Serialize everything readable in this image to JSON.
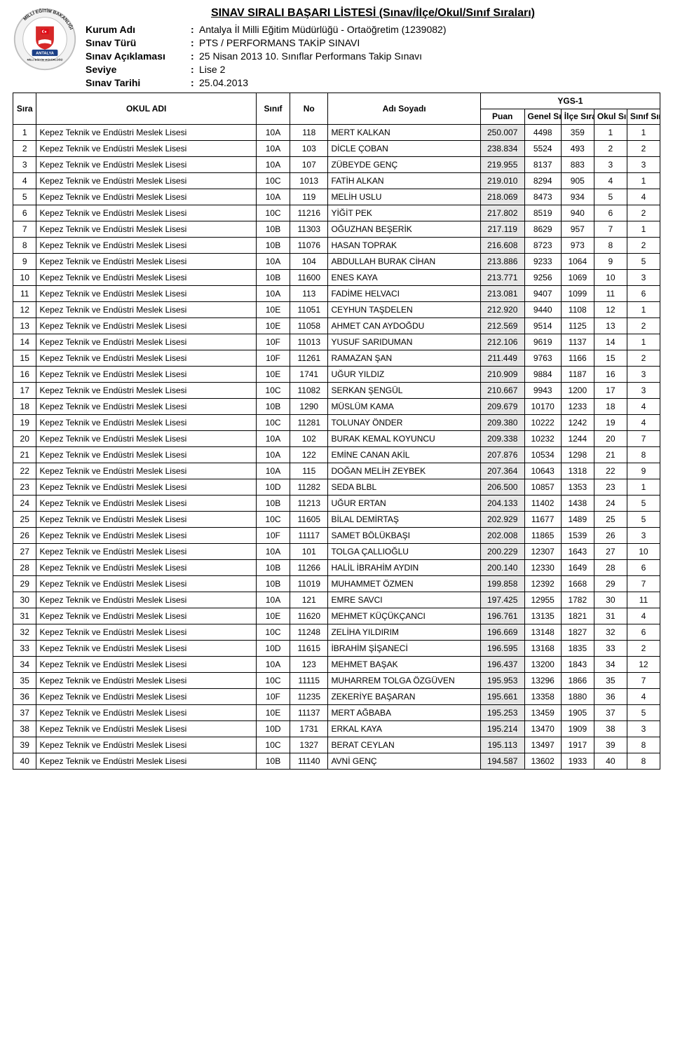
{
  "header": {
    "title": "SINAV SIRALI BAŞARI LİSTESİ (Sınav/İlçe/Okul/Sınıf Sıraları)",
    "labels": {
      "kurum": "Kurum Adı",
      "sinavTuru": "Sınav Türü",
      "aciklama": "Sınav Açıklaması",
      "seviye": "Seviye",
      "tarih": "Sınav Tarihi"
    },
    "values": {
      "kurum": "Antalya İl Milli Eğitim Müdürlüğü - Ortaöğretim (1239082)",
      "sinavTuru": "PTS / PERFORMANS TAKİP SINAVI",
      "aciklama": "25 Nisan 2013 10. Sınıflar Performans Takip Sınavı",
      "seviye": "Lise 2",
      "tarih": "25.04.2013"
    },
    "logo": {
      "outerText": "MİLLİ EĞİTİM BAKANLIĞI",
      "band": "ANTALYA",
      "sub": "MİLLİ EĞİTİM MÜDÜRLÜĞÜ",
      "ring_color": "#f2f2f2",
      "ring_stroke": "#bdbdbd",
      "center_red": "#d62828",
      "band_blue": "#1b3f86",
      "flag_red": "#e30a17",
      "border_color": "#777777",
      "text_color": "#1b1b1b"
    }
  },
  "table": {
    "group_title": "YGS-1",
    "columns": {
      "sira": "Sıra",
      "okul": "OKUL ADI",
      "sinif": "Sınıf",
      "no": "No",
      "ad": "Adı Soyadı",
      "puan": "Puan",
      "genel": "Genel Sıra",
      "ilce": "İlçe Sıra",
      "okuls": "Okul Sıra",
      "sinifs": "Sınıf Sıra"
    },
    "school_name": "Kepez Teknik ve Endüstri Meslek Lisesi",
    "puan_bg": "#e6e6e6",
    "rows": [
      {
        "sira": 1,
        "sinif": "10A",
        "no": "118",
        "ad": "MERT KALKAN",
        "puan": "250.007",
        "genel": 4498,
        "ilce": 359,
        "okuls": 1,
        "sinifs": 1
      },
      {
        "sira": 2,
        "sinif": "10A",
        "no": "103",
        "ad": "DİCLE ÇOBAN",
        "puan": "238.834",
        "genel": 5524,
        "ilce": 493,
        "okuls": 2,
        "sinifs": 2
      },
      {
        "sira": 3,
        "sinif": "10A",
        "no": "107",
        "ad": "ZÜBEYDE GENÇ",
        "puan": "219.955",
        "genel": 8137,
        "ilce": 883,
        "okuls": 3,
        "sinifs": 3
      },
      {
        "sira": 4,
        "sinif": "10C",
        "no": "1013",
        "ad": "FATİH ALKAN",
        "puan": "219.010",
        "genel": 8294,
        "ilce": 905,
        "okuls": 4,
        "sinifs": 1
      },
      {
        "sira": 5,
        "sinif": "10A",
        "no": "119",
        "ad": "MELİH USLU",
        "puan": "218.069",
        "genel": 8473,
        "ilce": 934,
        "okuls": 5,
        "sinifs": 4
      },
      {
        "sira": 6,
        "sinif": "10C",
        "no": "11216",
        "ad": "YİĞİT PEK",
        "puan": "217.802",
        "genel": 8519,
        "ilce": 940,
        "okuls": 6,
        "sinifs": 2
      },
      {
        "sira": 7,
        "sinif": "10B",
        "no": "11303",
        "ad": "OĞUZHAN BEŞERİK",
        "puan": "217.119",
        "genel": 8629,
        "ilce": 957,
        "okuls": 7,
        "sinifs": 1
      },
      {
        "sira": 8,
        "sinif": "10B",
        "no": "11076",
        "ad": "HASAN TOPRAK",
        "puan": "216.608",
        "genel": 8723,
        "ilce": 973,
        "okuls": 8,
        "sinifs": 2
      },
      {
        "sira": 9,
        "sinif": "10A",
        "no": "104",
        "ad": "ABDULLAH BURAK CİHAN",
        "puan": "213.886",
        "genel": 9233,
        "ilce": 1064,
        "okuls": 9,
        "sinifs": 5
      },
      {
        "sira": 10,
        "sinif": "10B",
        "no": "11600",
        "ad": "ENES KAYA",
        "puan": "213.771",
        "genel": 9256,
        "ilce": 1069,
        "okuls": 10,
        "sinifs": 3
      },
      {
        "sira": 11,
        "sinif": "10A",
        "no": "113",
        "ad": "FADİME HELVACI",
        "puan": "213.081",
        "genel": 9407,
        "ilce": 1099,
        "okuls": 11,
        "sinifs": 6
      },
      {
        "sira": 12,
        "sinif": "10E",
        "no": "11051",
        "ad": "CEYHUN TAŞDELEN",
        "puan": "212.920",
        "genel": 9440,
        "ilce": 1108,
        "okuls": 12,
        "sinifs": 1
      },
      {
        "sira": 13,
        "sinif": "10E",
        "no": "11058",
        "ad": "AHMET CAN AYDOĞDU",
        "puan": "212.569",
        "genel": 9514,
        "ilce": 1125,
        "okuls": 13,
        "sinifs": 2
      },
      {
        "sira": 14,
        "sinif": "10F",
        "no": "11013",
        "ad": "YUSUF SARIDUMAN",
        "puan": "212.106",
        "genel": 9619,
        "ilce": 1137,
        "okuls": 14,
        "sinifs": 1
      },
      {
        "sira": 15,
        "sinif": "10F",
        "no": "11261",
        "ad": "RAMAZAN ŞAN",
        "puan": "211.449",
        "genel": 9763,
        "ilce": 1166,
        "okuls": 15,
        "sinifs": 2
      },
      {
        "sira": 16,
        "sinif": "10E",
        "no": "1741",
        "ad": "UĞUR YILDIZ",
        "puan": "210.909",
        "genel": 9884,
        "ilce": 1187,
        "okuls": 16,
        "sinifs": 3
      },
      {
        "sira": 17,
        "sinif": "10C",
        "no": "11082",
        "ad": "SERKAN ŞENGÜL",
        "puan": "210.667",
        "genel": 9943,
        "ilce": 1200,
        "okuls": 17,
        "sinifs": 3
      },
      {
        "sira": 18,
        "sinif": "10B",
        "no": "1290",
        "ad": "MÜSLÜM KAMA",
        "puan": "209.679",
        "genel": 10170,
        "ilce": 1233,
        "okuls": 18,
        "sinifs": 4
      },
      {
        "sira": 19,
        "sinif": "10C",
        "no": "11281",
        "ad": "TOLUNAY ÖNDER",
        "puan": "209.380",
        "genel": 10222,
        "ilce": 1242,
        "okuls": 19,
        "sinifs": 4
      },
      {
        "sira": 20,
        "sinif": "10A",
        "no": "102",
        "ad": "BURAK KEMAL KOYUNCU",
        "puan": "209.338",
        "genel": 10232,
        "ilce": 1244,
        "okuls": 20,
        "sinifs": 7
      },
      {
        "sira": 21,
        "sinif": "10A",
        "no": "122",
        "ad": "EMİNE CANAN AKİL",
        "puan": "207.876",
        "genel": 10534,
        "ilce": 1298,
        "okuls": 21,
        "sinifs": 8
      },
      {
        "sira": 22,
        "sinif": "10A",
        "no": "115",
        "ad": "DOĞAN MELİH ZEYBEK",
        "puan": "207.364",
        "genel": 10643,
        "ilce": 1318,
        "okuls": 22,
        "sinifs": 9
      },
      {
        "sira": 23,
        "sinif": "10D",
        "no": "11282",
        "ad": "SEDA BLBL",
        "puan": "206.500",
        "genel": 10857,
        "ilce": 1353,
        "okuls": 23,
        "sinifs": 1
      },
      {
        "sira": 24,
        "sinif": "10B",
        "no": "11213",
        "ad": "UĞUR ERTAN",
        "puan": "204.133",
        "genel": 11402,
        "ilce": 1438,
        "okuls": 24,
        "sinifs": 5
      },
      {
        "sira": 25,
        "sinif": "10C",
        "no": "11605",
        "ad": "BİLAL DEMİRTAŞ",
        "puan": "202.929",
        "genel": 11677,
        "ilce": 1489,
        "okuls": 25,
        "sinifs": 5
      },
      {
        "sira": 26,
        "sinif": "10F",
        "no": "11117",
        "ad": "SAMET BÖLÜKBAŞI",
        "puan": "202.008",
        "genel": 11865,
        "ilce": 1539,
        "okuls": 26,
        "sinifs": 3
      },
      {
        "sira": 27,
        "sinif": "10A",
        "no": "101",
        "ad": "TOLGA ÇALLIOĞLU",
        "puan": "200.229",
        "genel": 12307,
        "ilce": 1643,
        "okuls": 27,
        "sinifs": 10
      },
      {
        "sira": 28,
        "sinif": "10B",
        "no": "11266",
        "ad": "HALİL İBRAHİM AYDIN",
        "puan": "200.140",
        "genel": 12330,
        "ilce": 1649,
        "okuls": 28,
        "sinifs": 6
      },
      {
        "sira": 29,
        "sinif": "10B",
        "no": "11019",
        "ad": "MUHAMMET ÖZMEN",
        "puan": "199.858",
        "genel": 12392,
        "ilce": 1668,
        "okuls": 29,
        "sinifs": 7
      },
      {
        "sira": 30,
        "sinif": "10A",
        "no": "121",
        "ad": "EMRE SAVCI",
        "puan": "197.425",
        "genel": 12955,
        "ilce": 1782,
        "okuls": 30,
        "sinifs": 11
      },
      {
        "sira": 31,
        "sinif": "10E",
        "no": "11620",
        "ad": "MEHMET KÜÇÜKÇANCI",
        "puan": "196.761",
        "genel": 13135,
        "ilce": 1821,
        "okuls": 31,
        "sinifs": 4
      },
      {
        "sira": 32,
        "sinif": "10C",
        "no": "11248",
        "ad": "ZELİHA YILDIRIM",
        "puan": "196.669",
        "genel": 13148,
        "ilce": 1827,
        "okuls": 32,
        "sinifs": 6
      },
      {
        "sira": 33,
        "sinif": "10D",
        "no": "11615",
        "ad": "İBRAHİM ŞİŞANECİ",
        "puan": "196.595",
        "genel": 13168,
        "ilce": 1835,
        "okuls": 33,
        "sinifs": 2
      },
      {
        "sira": 34,
        "sinif": "10A",
        "no": "123",
        "ad": "MEHMET BAŞAK",
        "puan": "196.437",
        "genel": 13200,
        "ilce": 1843,
        "okuls": 34,
        "sinifs": 12
      },
      {
        "sira": 35,
        "sinif": "10C",
        "no": "11115",
        "ad": "MUHARREM TOLGA ÖZGÜVEN",
        "puan": "195.953",
        "genel": 13296,
        "ilce": 1866,
        "okuls": 35,
        "sinifs": 7
      },
      {
        "sira": 36,
        "sinif": "10F",
        "no": "11235",
        "ad": "ZEKERİYE BAŞARAN",
        "puan": "195.661",
        "genel": 13358,
        "ilce": 1880,
        "okuls": 36,
        "sinifs": 4
      },
      {
        "sira": 37,
        "sinif": "10E",
        "no": "11137",
        "ad": "MERT AĞBABA",
        "puan": "195.253",
        "genel": 13459,
        "ilce": 1905,
        "okuls": 37,
        "sinifs": 5
      },
      {
        "sira": 38,
        "sinif": "10D",
        "no": "1731",
        "ad": "ERKAL KAYA",
        "puan": "195.214",
        "genel": 13470,
        "ilce": 1909,
        "okuls": 38,
        "sinifs": 3
      },
      {
        "sira": 39,
        "sinif": "10C",
        "no": "1327",
        "ad": "BERAT CEYLAN",
        "puan": "195.113",
        "genel": 13497,
        "ilce": 1917,
        "okuls": 39,
        "sinifs": 8
      },
      {
        "sira": 40,
        "sinif": "10B",
        "no": "11140",
        "ad": "AVNİ GENÇ",
        "puan": "194.587",
        "genel": 13602,
        "ilce": 1933,
        "okuls": 40,
        "sinifs": 8
      }
    ]
  }
}
